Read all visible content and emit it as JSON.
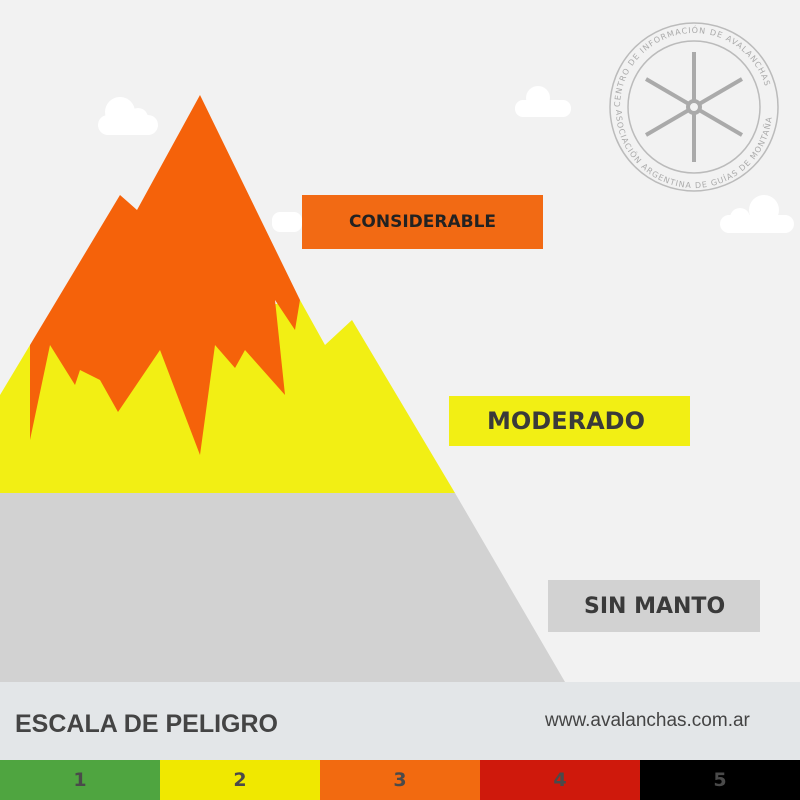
{
  "labels": {
    "considerable": "CONSIDERABLE",
    "moderado": "MODERADO",
    "sin_manto": "SIN MANTO"
  },
  "logo": {
    "text_top": "CENTRO DE INFORMACIÓN DE AVALANCHAS",
    "text_bottom": "ASOCIACIÓN ARGENTINA DE GUÍAS DE MONTAÑA",
    "icon": "snowflake-icon"
  },
  "footer": {
    "title": "ESCALA DE PELIGRO",
    "url": "www.avalanchas.com.ar"
  },
  "scale": [
    {
      "label": "1",
      "color": "#4fa540"
    },
    {
      "label": "2",
      "color": "#f0e800"
    },
    {
      "label": "3",
      "color": "#f26a10"
    },
    {
      "label": "4",
      "color": "#cf190c"
    },
    {
      "label": "5",
      "color": "#000000"
    }
  ],
  "colors": {
    "considerable": "#f5620a",
    "moderado": "#f2ef14",
    "sin_manto": "#d2d2d2"
  }
}
